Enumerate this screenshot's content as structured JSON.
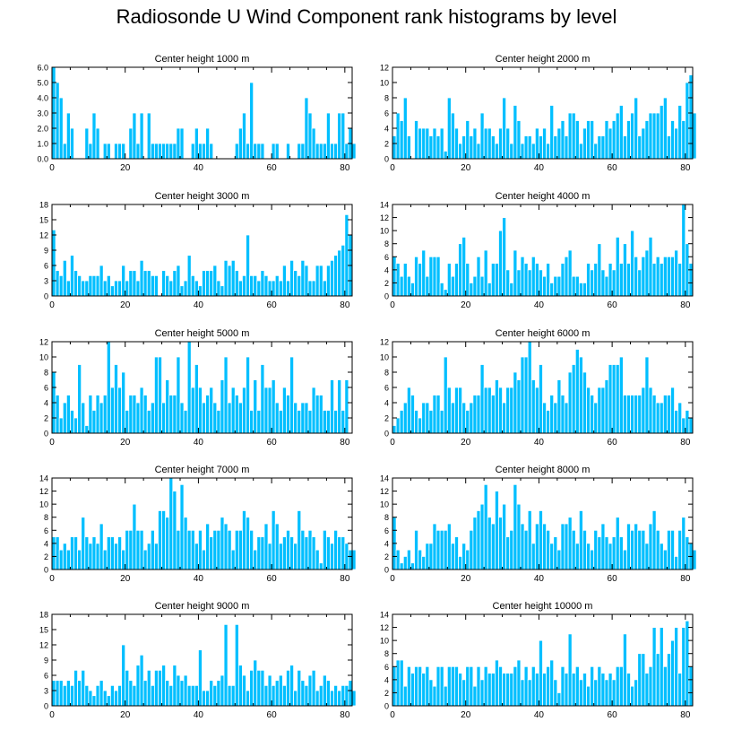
{
  "title": "Radiosonde U Wind Component rank histograms by level",
  "colors": {
    "bar": "#00bfff",
    "bar_edge": "#ffffff",
    "axis": "#000000"
  },
  "chart_data": [
    {
      "type": "bar",
      "title": "Center height 1000 m",
      "xlabel": "",
      "ylabel": "",
      "xlim": [
        0,
        82
      ],
      "ylim": [
        0,
        6
      ],
      "xticks": [
        "0",
        "20",
        "40",
        "60",
        "80"
      ],
      "yticks": [
        "0.0",
        "1.0",
        "2.0",
        "3.0",
        "4.0",
        "5.0",
        "6.0"
      ],
      "values": [
        6,
        5,
        4,
        1,
        3,
        2,
        0,
        0,
        0,
        2,
        1,
        3,
        2,
        0,
        1,
        1,
        0,
        1,
        1,
        1,
        0,
        2,
        3,
        1,
        3,
        0,
        3,
        1,
        1,
        1,
        1,
        1,
        1,
        1,
        2,
        2,
        0,
        0,
        1,
        2,
        1,
        1,
        2,
        1,
        0,
        0,
        0,
        0,
        0,
        0,
        1,
        2,
        3,
        1,
        5,
        1,
        1,
        1,
        0,
        0,
        1,
        1,
        0,
        0,
        1,
        0,
        0,
        1,
        1,
        4,
        3,
        2,
        1,
        1,
        1,
        3,
        1,
        1,
        3,
        3,
        1,
        2,
        1
      ]
    },
    {
      "type": "bar",
      "title": "Center height 2000 m",
      "xlabel": "",
      "ylabel": "",
      "xlim": [
        0,
        82
      ],
      "ylim": [
        0,
        12
      ],
      "xticks": [
        "0",
        "20",
        "40",
        "60",
        "80"
      ],
      "yticks": [
        "0",
        "2",
        "4",
        "6",
        "8",
        "10",
        "12"
      ],
      "values": [
        3,
        6,
        5,
        8,
        3,
        0,
        5,
        4,
        4,
        4,
        3,
        4,
        3,
        4,
        1,
        8,
        6,
        4,
        2,
        3,
        5,
        3,
        4,
        2,
        6,
        4,
        4,
        3,
        2,
        4,
        8,
        4,
        2,
        7,
        5,
        2,
        3,
        3,
        2,
        4,
        3,
        4,
        2,
        7,
        3,
        4,
        5,
        3,
        6,
        6,
        5,
        2,
        4,
        5,
        5,
        2,
        3,
        3,
        5,
        4,
        5,
        6,
        7,
        3,
        5,
        6,
        8,
        3,
        4,
        5,
        6,
        6,
        6,
        7,
        8,
        3,
        5,
        4,
        7,
        5,
        10,
        11,
        6
      ]
    },
    {
      "type": "bar",
      "title": "Center height 3000 m",
      "xlabel": "",
      "ylabel": "",
      "xlim": [
        0,
        82
      ],
      "ylim": [
        0,
        18
      ],
      "xticks": [
        "0",
        "20",
        "40",
        "60",
        "80"
      ],
      "yticks": [
        "0",
        "3",
        "6",
        "9",
        "12",
        "15",
        "18"
      ],
      "values": [
        13,
        5,
        4,
        7,
        3,
        8,
        5,
        4,
        3,
        3,
        4,
        4,
        4,
        6,
        3,
        4,
        2,
        3,
        3,
        6,
        3,
        5,
        5,
        3,
        7,
        5,
        5,
        4,
        4,
        0,
        5,
        4,
        3,
        5,
        6,
        2,
        3,
        8,
        4,
        3,
        2,
        5,
        5,
        5,
        6,
        3,
        2,
        7,
        6,
        7,
        5,
        3,
        4,
        12,
        4,
        4,
        3,
        5,
        4,
        3,
        3,
        4,
        3,
        6,
        3,
        7,
        5,
        4,
        7,
        6,
        3,
        3,
        6,
        6,
        3,
        6,
        7,
        8,
        9,
        10,
        16,
        12,
        0
      ]
    },
    {
      "type": "bar",
      "title": "Center height 4000 m",
      "xlabel": "",
      "ylabel": "",
      "xlim": [
        0,
        82
      ],
      "ylim": [
        0,
        14
      ],
      "xticks": [
        "0",
        "20",
        "40",
        "60",
        "80"
      ],
      "yticks": [
        "0",
        "2",
        "4",
        "6",
        "8",
        "10",
        "12",
        "14"
      ],
      "values": [
        6,
        5,
        3,
        5,
        3,
        2,
        6,
        5,
        7,
        3,
        6,
        6,
        6,
        2,
        1,
        5,
        3,
        5,
        8,
        9,
        5,
        2,
        3,
        6,
        3,
        7,
        2,
        5,
        5,
        10,
        12,
        4,
        2,
        7,
        4,
        6,
        5,
        4,
        6,
        5,
        4,
        3,
        5,
        2,
        3,
        3,
        5,
        6,
        7,
        3,
        3,
        2,
        2,
        5,
        4,
        5,
        8,
        4,
        3,
        5,
        4,
        9,
        5,
        8,
        5,
        10,
        6,
        4,
        6,
        7,
        9,
        5,
        6,
        5,
        6,
        6,
        6,
        7,
        5,
        14,
        8,
        5,
        0
      ]
    },
    {
      "type": "bar",
      "title": "Center height 5000 m",
      "xlabel": "",
      "ylabel": "",
      "xlim": [
        0,
        82
      ],
      "ylim": [
        0,
        12
      ],
      "xticks": [
        "0",
        "20",
        "40",
        "60",
        "80"
      ],
      "yticks": [
        "0",
        "2",
        "4",
        "6",
        "8",
        "10",
        "12"
      ],
      "values": [
        8,
        5,
        2,
        4,
        5,
        3,
        2,
        9,
        4,
        1,
        5,
        3,
        5,
        4,
        5,
        12,
        6,
        9,
        6,
        8,
        3,
        5,
        5,
        4,
        6,
        5,
        3,
        4,
        10,
        10,
        4,
        7,
        5,
        5,
        10,
        4,
        3,
        12,
        6,
        9,
        6,
        4,
        5,
        6,
        4,
        3,
        7,
        10,
        4,
        6,
        5,
        4,
        6,
        10,
        3,
        7,
        3,
        9,
        6,
        6,
        7,
        4,
        3,
        6,
        5,
        10,
        4,
        3,
        4,
        4,
        3,
        6,
        5,
        5,
        3,
        3,
        7,
        3,
        7,
        3,
        7,
        0,
        0
      ]
    },
    {
      "type": "bar",
      "title": "Center height 6000 m",
      "xlabel": "",
      "ylabel": "",
      "xlim": [
        0,
        82
      ],
      "ylim": [
        0,
        12
      ],
      "xticks": [
        "0",
        "20",
        "40",
        "60",
        "80"
      ],
      "yticks": [
        "0",
        "2",
        "4",
        "6",
        "8",
        "10",
        "12"
      ],
      "values": [
        1,
        2,
        3,
        4,
        6,
        5,
        3,
        2,
        4,
        4,
        3,
        5,
        5,
        3,
        10,
        6,
        4,
        6,
        6,
        4,
        3,
        4,
        5,
        5,
        9,
        6,
        6,
        5,
        7,
        6,
        4,
        6,
        6,
        8,
        7,
        10,
        10,
        12,
        7,
        6,
        9,
        4,
        3,
        5,
        4,
        7,
        5,
        4,
        8,
        9,
        11,
        10,
        8,
        6,
        5,
        4,
        6,
        6,
        7,
        9,
        9,
        9,
        10,
        5,
        5,
        5,
        5,
        5,
        6,
        10,
        6,
        5,
        4,
        4,
        5,
        5,
        6,
        3,
        4,
        2,
        3,
        2,
        0
      ]
    },
    {
      "type": "bar",
      "title": "Center height 7000 m",
      "xlabel": "",
      "ylabel": "",
      "xlim": [
        0,
        82
      ],
      "ylim": [
        0,
        14
      ],
      "xticks": [
        "0",
        "20",
        "40",
        "60",
        "80"
      ],
      "yticks": [
        "0",
        "2",
        "4",
        "6",
        "8",
        "10",
        "12",
        "14"
      ],
      "values": [
        5,
        5,
        3,
        4,
        3,
        5,
        5,
        3,
        8,
        5,
        4,
        5,
        4,
        7,
        3,
        5,
        5,
        4,
        5,
        3,
        6,
        6,
        10,
        6,
        6,
        3,
        4,
        6,
        4,
        9,
        9,
        8,
        14,
        12,
        6,
        13,
        8,
        6,
        6,
        4,
        6,
        3,
        7,
        5,
        6,
        6,
        8,
        7,
        6,
        3,
        6,
        6,
        9,
        8,
        6,
        3,
        5,
        5,
        7,
        4,
        9,
        7,
        4,
        5,
        6,
        5,
        4,
        9,
        6,
        5,
        6,
        5,
        3,
        1,
        6,
        5,
        4,
        6,
        5,
        5,
        4,
        3,
        3
      ]
    },
    {
      "type": "bar",
      "title": "Center height 8000 m",
      "xlabel": "",
      "ylabel": "",
      "xlim": [
        0,
        82
      ],
      "ylim": [
        0,
        14
      ],
      "xticks": [
        "0",
        "20",
        "40",
        "60",
        "80"
      ],
      "yticks": [
        "0",
        "2",
        "4",
        "6",
        "8",
        "10",
        "12",
        "14"
      ],
      "values": [
        8,
        3,
        1,
        2,
        3,
        1,
        6,
        3,
        2,
        4,
        4,
        7,
        6,
        6,
        6,
        7,
        4,
        5,
        2,
        4,
        3,
        6,
        8,
        9,
        10,
        13,
        8,
        7,
        12,
        8,
        10,
        5,
        6,
        13,
        10,
        7,
        6,
        9,
        4,
        7,
        9,
        7,
        6,
        4,
        5,
        3,
        7,
        7,
        8,
        6,
        4,
        9,
        6,
        4,
        3,
        6,
        5,
        7,
        5,
        4,
        5,
        8,
        5,
        3,
        7,
        6,
        7,
        6,
        6,
        4,
        7,
        9,
        6,
        4,
        3,
        6,
        6,
        2,
        6,
        8,
        5,
        4,
        3
      ]
    },
    {
      "type": "bar",
      "title": "Center height 9000 m",
      "xlabel": "",
      "ylabel": "",
      "xlim": [
        0,
        82
      ],
      "ylim": [
        0,
        18
      ],
      "xticks": [
        "0",
        "20",
        "40",
        "60",
        "80"
      ],
      "yticks": [
        "0",
        "3",
        "6",
        "9",
        "12",
        "15",
        "18"
      ],
      "values": [
        5,
        5,
        5,
        4,
        5,
        4,
        7,
        5,
        7,
        4,
        3,
        2,
        4,
        5,
        3,
        2,
        4,
        3,
        4,
        12,
        7,
        5,
        4,
        8,
        10,
        5,
        7,
        4,
        7,
        7,
        8,
        5,
        4,
        8,
        6,
        5,
        6,
        4,
        4,
        4,
        11,
        3,
        3,
        5,
        4,
        5,
        6,
        16,
        4,
        4,
        16,
        8,
        6,
        3,
        7,
        9,
        7,
        7,
        4,
        6,
        4,
        5,
        6,
        4,
        7,
        8,
        3,
        7,
        5,
        4,
        6,
        7,
        3,
        4,
        6,
        5,
        3,
        4,
        3,
        4,
        4,
        5,
        3
      ]
    },
    {
      "type": "bar",
      "title": "Center height 10000 m",
      "xlabel": "",
      "ylabel": "",
      "xlim": [
        0,
        82
      ],
      "ylim": [
        0,
        14
      ],
      "xticks": [
        "0",
        "20",
        "40",
        "60",
        "80"
      ],
      "yticks": [
        "0",
        "2",
        "4",
        "6",
        "8",
        "10",
        "12",
        "14"
      ],
      "values": [
        6,
        7,
        7,
        3,
        6,
        5,
        6,
        6,
        5,
        6,
        4,
        3,
        6,
        6,
        3,
        6,
        6,
        6,
        5,
        4,
        6,
        6,
        3,
        6,
        4,
        6,
        5,
        5,
        7,
        6,
        5,
        5,
        5,
        6,
        7,
        4,
        6,
        4,
        6,
        5,
        10,
        5,
        6,
        7,
        4,
        2,
        6,
        5,
        11,
        5,
        6,
        4,
        5,
        3,
        6,
        4,
        6,
        5,
        4,
        5,
        4,
        6,
        6,
        11,
        5,
        3,
        4,
        8,
        8,
        5,
        6,
        12,
        8,
        12,
        6,
        8,
        10,
        12,
        5,
        12,
        13,
        6,
        0
      ]
    }
  ]
}
